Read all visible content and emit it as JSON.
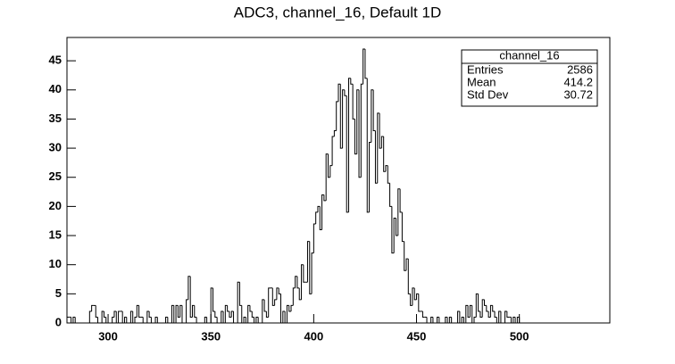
{
  "chart_data": {
    "type": "histogram",
    "title": "ADC3, channel_16, Default 1D",
    "bins": [
      280,
      281,
      282,
      283,
      284,
      285,
      286,
      287,
      288,
      289,
      290,
      291,
      292,
      293,
      294,
      295,
      296,
      297,
      298,
      299,
      300,
      301,
      302,
      303,
      304,
      305,
      306,
      307,
      308,
      309,
      310,
      311,
      312,
      313,
      314,
      315,
      316,
      317,
      318,
      319,
      320,
      321,
      322,
      323,
      324,
      325,
      326,
      327,
      328,
      329,
      330,
      331,
      332,
      333,
      334,
      335,
      336,
      337,
      338,
      339,
      340,
      341,
      342,
      343,
      344,
      345,
      346,
      347,
      348,
      349,
      350,
      351,
      352,
      353,
      354,
      355,
      356,
      357,
      358,
      359,
      360,
      361,
      362,
      363,
      364,
      365,
      366,
      367,
      368,
      369,
      370,
      371,
      372,
      373,
      374,
      375,
      376,
      377,
      378,
      379,
      380,
      381,
      382,
      383,
      384,
      385,
      386,
      387,
      388,
      389,
      390,
      391,
      392,
      393,
      394,
      395,
      396,
      397,
      398,
      399,
      400,
      401,
      402,
      403,
      404,
      405,
      406,
      407,
      408,
      409,
      410,
      411,
      412,
      413,
      414,
      415,
      416,
      417,
      418,
      419,
      420,
      421,
      422,
      423,
      424,
      425,
      426,
      427,
      428,
      429,
      430,
      431,
      432,
      433,
      434,
      435,
      436,
      437,
      438,
      439,
      440,
      441,
      442,
      443,
      444,
      445,
      446,
      447,
      448,
      449,
      450,
      451,
      452,
      453,
      454,
      455,
      456,
      457,
      458,
      459,
      460,
      461,
      462,
      463,
      464,
      465,
      466,
      467,
      468,
      469,
      470,
      471,
      472,
      473,
      474,
      475,
      476,
      477,
      478,
      479,
      480,
      481,
      482,
      483,
      484,
      485,
      486,
      487,
      488,
      489,
      490,
      491,
      492,
      493,
      494,
      495,
      496,
      497,
      498,
      499,
      500,
      501,
      502,
      503,
      504,
      505
    ],
    "values": [
      1,
      1,
      0,
      1,
      0,
      0,
      0,
      0,
      0,
      0,
      0,
      2,
      3,
      3,
      1,
      0,
      0,
      2,
      1,
      0,
      0,
      0,
      1,
      2,
      0,
      2,
      2,
      0,
      1,
      0,
      0,
      2,
      0,
      1,
      3,
      1,
      1,
      0,
      0,
      2,
      1,
      0,
      0,
      1,
      0,
      0,
      0,
      0,
      1,
      0,
      0,
      3,
      0,
      3,
      1,
      3,
      0,
      0,
      4,
      8,
      1,
      3,
      1,
      0,
      0,
      0,
      0,
      1,
      0,
      0,
      6,
      2,
      1,
      0,
      0,
      2,
      0,
      3,
      2,
      1,
      2,
      0,
      0,
      7,
      3,
      0,
      1,
      0,
      3,
      2,
      1,
      0,
      1,
      0,
      0,
      4,
      2,
      1,
      6,
      6,
      3,
      4,
      6,
      5,
      0,
      2,
      0,
      3,
      2,
      3,
      6,
      8,
      6,
      4,
      10,
      7,
      7,
      14,
      5,
      12,
      17,
      19,
      20,
      16,
      22,
      21,
      29,
      25,
      27,
      32,
      33,
      38,
      41,
      30,
      40,
      39,
      19,
      42,
      41,
      35,
      29,
      40,
      25,
      41,
      47,
      42,
      19,
      31,
      40,
      33,
      24,
      36,
      30,
      32,
      26,
      27,
      24,
      20,
      12,
      18,
      15,
      23,
      19,
      14,
      9,
      11,
      5,
      3,
      6,
      4,
      5,
      2,
      2,
      1,
      1,
      0,
      0,
      1,
      0,
      0,
      1,
      0,
      0,
      0,
      1,
      0,
      1,
      0,
      0,
      0,
      2,
      0,
      1,
      0,
      3,
      1,
      3,
      0,
      1,
      5,
      2,
      1,
      4,
      3,
      2,
      1,
      3,
      2,
      1,
      0,
      2,
      0,
      0,
      2,
      1,
      1,
      0,
      1,
      0,
      1,
      0,
      0,
      0,
      0,
      0
    ],
    "color": "#000000",
    "xlim": [
      280,
      544
    ],
    "ylim": [
      0,
      49
    ],
    "xticks": [
      300,
      350,
      400,
      450,
      500
    ],
    "yticks": [
      0,
      5,
      10,
      15,
      20,
      25,
      30,
      35,
      40,
      45
    ],
    "stats": {
      "title": "channel_16",
      "rows": [
        [
          "Entries",
          "2586"
        ],
        [
          "Mean",
          "414.2"
        ],
        [
          "Std Dev",
          "30.72"
        ]
      ]
    }
  }
}
